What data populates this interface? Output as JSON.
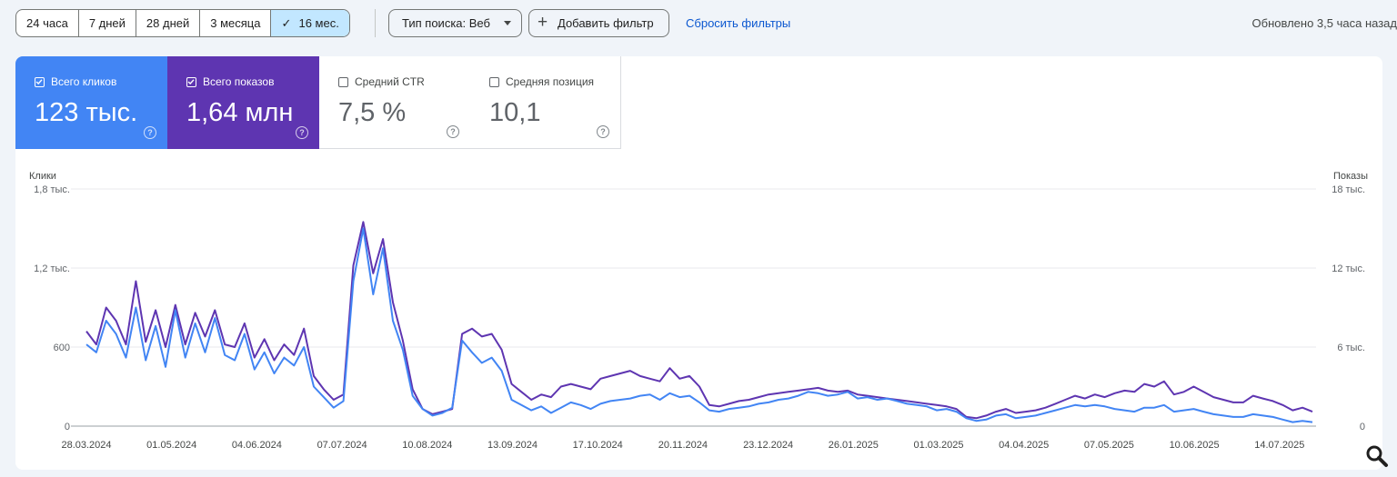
{
  "toolbar": {
    "date_ranges": [
      {
        "label": "24 часа",
        "active": false
      },
      {
        "label": "7 дней",
        "active": false
      },
      {
        "label": "28 дней",
        "active": false
      },
      {
        "label": "3 месяца",
        "active": false
      },
      {
        "label": "16 мес.",
        "active": true
      }
    ],
    "search_type_label": "Тип поиска: Веб",
    "add_filter_label": "Добавить фильтр",
    "reset_filters_label": "Сбросить фильтры",
    "updated_label": "Обновлено 3,5 часа назад"
  },
  "metrics": [
    {
      "label": "Всего кликов",
      "value": "123 тыс.",
      "checked": true,
      "color": "#4285f4"
    },
    {
      "label": "Всего показов",
      "value": "1,64 млн",
      "checked": true,
      "color": "#5e35b1"
    },
    {
      "label": "Средний CTR",
      "value": "7,5 %",
      "checked": false
    },
    {
      "label": "Средняя позиция",
      "value": "10,1",
      "checked": false
    }
  ],
  "icons": {
    "check": "check-icon",
    "dropdown": "arrow-drop-down-icon",
    "add": "plus-icon",
    "help": "help-circle-icon",
    "zoom": "search-icon"
  },
  "chart_data": {
    "type": "line",
    "y_left_label": "Клики",
    "y_right_label": "Показы",
    "y_left_ticks": [
      "0",
      "600",
      "1,2 тыс.",
      "1,8 тыс."
    ],
    "y_right_ticks": [
      "0",
      "6 тыс.",
      "12 тыс.",
      "18 тыс."
    ],
    "ylim_left": [
      0,
      1800
    ],
    "ylim_right": [
      0,
      18000
    ],
    "x_ticks": [
      "28.03.2024",
      "01.05.2024",
      "04.06.2024",
      "07.07.2024",
      "10.08.2024",
      "13.09.2024",
      "17.10.2024",
      "20.11.2024",
      "23.12.2024",
      "26.01.2025",
      "01.03.2025",
      "04.04.2025",
      "07.05.2025",
      "10.06.2025",
      "14.07.2025"
    ],
    "x_range": [
      "2024-03-28",
      "2025-07-24"
    ],
    "grid": true,
    "series": [
      {
        "name": "Клики",
        "color": "#4285f4",
        "axis": "left",
        "values": [
          620,
          560,
          800,
          700,
          520,
          900,
          500,
          760,
          450,
          880,
          520,
          780,
          560,
          820,
          540,
          500,
          700,
          430,
          560,
          400,
          520,
          460,
          600,
          300,
          220,
          140,
          190,
          1100,
          1500,
          1000,
          1350,
          800,
          580,
          230,
          130,
          80,
          100,
          140,
          650,
          560,
          480,
          520,
          420,
          200,
          160,
          120,
          150,
          100,
          140,
          180,
          160,
          130,
          170,
          190,
          200,
          210,
          230,
          240,
          200,
          250,
          220,
          230,
          180,
          120,
          110,
          130,
          140,
          150,
          170,
          180,
          200,
          210,
          230,
          260,
          250,
          230,
          240,
          260,
          210,
          220,
          200,
          210,
          190,
          170,
          160,
          150,
          120,
          130,
          110,
          60,
          40,
          50,
          80,
          90,
          60,
          70,
          80,
          100,
          120,
          140,
          160,
          150,
          160,
          150,
          130,
          120,
          110,
          140,
          140,
          160,
          110,
          120,
          130,
          110,
          90,
          80,
          70,
          70,
          90,
          80,
          70,
          50,
          30,
          40,
          30
        ]
      },
      {
        "name": "Показы",
        "color": "#5e35b1",
        "axis": "right",
        "values": [
          7200,
          6200,
          9000,
          8000,
          6200,
          11000,
          6400,
          8800,
          6000,
          9200,
          6200,
          8600,
          6800,
          8800,
          6200,
          6000,
          7800,
          5200,
          6600,
          5000,
          6200,
          5400,
          7400,
          3800,
          2800,
          2000,
          2400,
          12200,
          15500,
          11600,
          14200,
          9400,
          6500,
          2800,
          1300,
          900,
          1100,
          1300,
          7000,
          7400,
          6800,
          7000,
          5800,
          3200,
          2600,
          2000,
          2400,
          2200,
          3000,
          3200,
          3000,
          2800,
          3600,
          3800,
          4000,
          4200,
          3800,
          3600,
          3400,
          4400,
          3600,
          3800,
          3000,
          1600,
          1500,
          1700,
          1900,
          2000,
          2200,
          2400,
          2500,
          2600,
          2700,
          2800,
          2900,
          2700,
          2600,
          2700,
          2400,
          2300,
          2200,
          2100,
          2000,
          1900,
          1800,
          1700,
          1600,
          1500,
          1300,
          700,
          600,
          800,
          1100,
          1300,
          1000,
          1100,
          1200,
          1400,
          1700,
          2000,
          2300,
          2100,
          2400,
          2200,
          2500,
          2700,
          2600,
          3200,
          3000,
          3400,
          2400,
          2600,
          3000,
          2600,
          2200,
          2000,
          1800,
          1800,
          2300,
          2100,
          1900,
          1600,
          1200,
          1400,
          1100
        ]
      }
    ]
  }
}
